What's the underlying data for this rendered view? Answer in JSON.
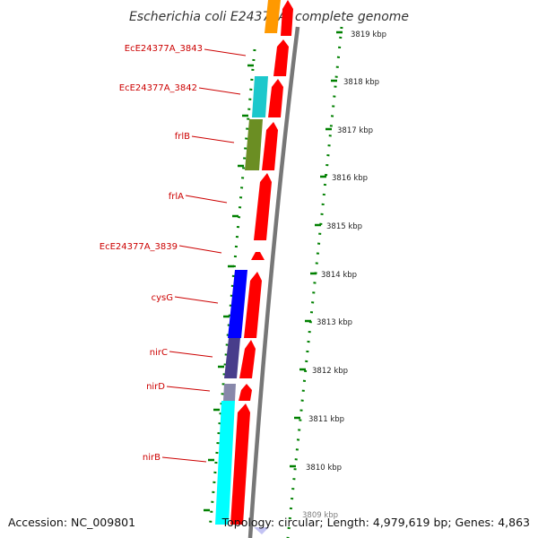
{
  "title": "Escherichia coli E24377A, complete genome",
  "footer": {
    "accession": "Accession: NC_009801",
    "topology": "Topology: circular; Length: 4,979,619 bp; Genes: 4,863"
  },
  "colors": {
    "forward_strand": "#ff0000",
    "backbone": "#888888",
    "ticks": "#008000",
    "label": "#cc0000"
  },
  "kbp_ticks": [
    {
      "label": "3819 kbp",
      "kbp": 3819
    },
    {
      "label": "3818 kbp",
      "kbp": 3818
    },
    {
      "label": "3817 kbp",
      "kbp": 3817
    },
    {
      "label": "3816 kbp",
      "kbp": 3816
    },
    {
      "label": "3815 kbp",
      "kbp": 3815
    },
    {
      "label": "3814 kbp",
      "kbp": 3814
    },
    {
      "label": "3813 kbp",
      "kbp": 3813
    },
    {
      "label": "3812 kbp",
      "kbp": 3812
    },
    {
      "label": "3811 kbp",
      "kbp": 3811
    },
    {
      "label": "3810 kbp",
      "kbp": 3810
    },
    {
      "label": "3809 kbp",
      "kbp": 3809
    }
  ],
  "gene_labels": [
    {
      "name": "EcE24377A_3843"
    },
    {
      "name": "EcE24377A_3842"
    },
    {
      "name": "frlB"
    },
    {
      "name": "frlA"
    },
    {
      "name": "EcE24377A_3839"
    },
    {
      "name": "cysG"
    },
    {
      "name": "nirC"
    },
    {
      "name": "nirD"
    },
    {
      "name": "nirB"
    }
  ]
}
